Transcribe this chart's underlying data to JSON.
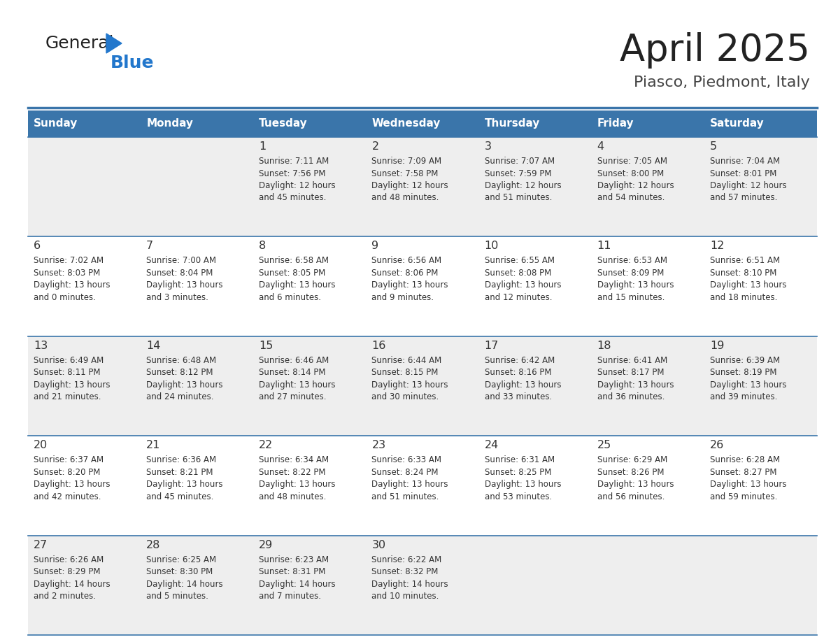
{
  "title": "April 2025",
  "subtitle": "Piasco, Piedmont, Italy",
  "days_of_week": [
    "Sunday",
    "Monday",
    "Tuesday",
    "Wednesday",
    "Thursday",
    "Friday",
    "Saturday"
  ],
  "header_bg": "#3A75AA",
  "header_text": "#FFFFFF",
  "row_bg_odd": "#EEEEEE",
  "row_bg_even": "#FFFFFF",
  "cell_text_color": "#333333",
  "day_num_color": "#333333",
  "grid_line_color": "#3A75AA",
  "title_color": "#222222",
  "subtitle_color": "#444444",
  "logo_general_color": "#222222",
  "logo_blue_color": "#2277CC",
  "weeks": [
    [
      {
        "day": null,
        "sunrise": null,
        "sunset": null,
        "daylight": null
      },
      {
        "day": null,
        "sunrise": null,
        "sunset": null,
        "daylight": null
      },
      {
        "day": 1,
        "sunrise": "7:11 AM",
        "sunset": "7:56 PM",
        "daylight": "12 hours and 45 minutes."
      },
      {
        "day": 2,
        "sunrise": "7:09 AM",
        "sunset": "7:58 PM",
        "daylight": "12 hours and 48 minutes."
      },
      {
        "day": 3,
        "sunrise": "7:07 AM",
        "sunset": "7:59 PM",
        "daylight": "12 hours and 51 minutes."
      },
      {
        "day": 4,
        "sunrise": "7:05 AM",
        "sunset": "8:00 PM",
        "daylight": "12 hours and 54 minutes."
      },
      {
        "day": 5,
        "sunrise": "7:04 AM",
        "sunset": "8:01 PM",
        "daylight": "12 hours and 57 minutes."
      }
    ],
    [
      {
        "day": 6,
        "sunrise": "7:02 AM",
        "sunset": "8:03 PM",
        "daylight": "13 hours and 0 minutes."
      },
      {
        "day": 7,
        "sunrise": "7:00 AM",
        "sunset": "8:04 PM",
        "daylight": "13 hours and 3 minutes."
      },
      {
        "day": 8,
        "sunrise": "6:58 AM",
        "sunset": "8:05 PM",
        "daylight": "13 hours and 6 minutes."
      },
      {
        "day": 9,
        "sunrise": "6:56 AM",
        "sunset": "8:06 PM",
        "daylight": "13 hours and 9 minutes."
      },
      {
        "day": 10,
        "sunrise": "6:55 AM",
        "sunset": "8:08 PM",
        "daylight": "13 hours and 12 minutes."
      },
      {
        "day": 11,
        "sunrise": "6:53 AM",
        "sunset": "8:09 PM",
        "daylight": "13 hours and 15 minutes."
      },
      {
        "day": 12,
        "sunrise": "6:51 AM",
        "sunset": "8:10 PM",
        "daylight": "13 hours and 18 minutes."
      }
    ],
    [
      {
        "day": 13,
        "sunrise": "6:49 AM",
        "sunset": "8:11 PM",
        "daylight": "13 hours and 21 minutes."
      },
      {
        "day": 14,
        "sunrise": "6:48 AM",
        "sunset": "8:12 PM",
        "daylight": "13 hours and 24 minutes."
      },
      {
        "day": 15,
        "sunrise": "6:46 AM",
        "sunset": "8:14 PM",
        "daylight": "13 hours and 27 minutes."
      },
      {
        "day": 16,
        "sunrise": "6:44 AM",
        "sunset": "8:15 PM",
        "daylight": "13 hours and 30 minutes."
      },
      {
        "day": 17,
        "sunrise": "6:42 AM",
        "sunset": "8:16 PM",
        "daylight": "13 hours and 33 minutes."
      },
      {
        "day": 18,
        "sunrise": "6:41 AM",
        "sunset": "8:17 PM",
        "daylight": "13 hours and 36 minutes."
      },
      {
        "day": 19,
        "sunrise": "6:39 AM",
        "sunset": "8:19 PM",
        "daylight": "13 hours and 39 minutes."
      }
    ],
    [
      {
        "day": 20,
        "sunrise": "6:37 AM",
        "sunset": "8:20 PM",
        "daylight": "13 hours and 42 minutes."
      },
      {
        "day": 21,
        "sunrise": "6:36 AM",
        "sunset": "8:21 PM",
        "daylight": "13 hours and 45 minutes."
      },
      {
        "day": 22,
        "sunrise": "6:34 AM",
        "sunset": "8:22 PM",
        "daylight": "13 hours and 48 minutes."
      },
      {
        "day": 23,
        "sunrise": "6:33 AM",
        "sunset": "8:24 PM",
        "daylight": "13 hours and 51 minutes."
      },
      {
        "day": 24,
        "sunrise": "6:31 AM",
        "sunset": "8:25 PM",
        "daylight": "13 hours and 53 minutes."
      },
      {
        "day": 25,
        "sunrise": "6:29 AM",
        "sunset": "8:26 PM",
        "daylight": "13 hours and 56 minutes."
      },
      {
        "day": 26,
        "sunrise": "6:28 AM",
        "sunset": "8:27 PM",
        "daylight": "13 hours and 59 minutes."
      }
    ],
    [
      {
        "day": 27,
        "sunrise": "6:26 AM",
        "sunset": "8:29 PM",
        "daylight": "14 hours and 2 minutes."
      },
      {
        "day": 28,
        "sunrise": "6:25 AM",
        "sunset": "8:30 PM",
        "daylight": "14 hours and 5 minutes."
      },
      {
        "day": 29,
        "sunrise": "6:23 AM",
        "sunset": "8:31 PM",
        "daylight": "14 hours and 7 minutes."
      },
      {
        "day": 30,
        "sunrise": "6:22 AM",
        "sunset": "8:32 PM",
        "daylight": "14 hours and 10 minutes."
      },
      {
        "day": null,
        "sunrise": null,
        "sunset": null,
        "daylight": null
      },
      {
        "day": null,
        "sunrise": null,
        "sunset": null,
        "daylight": null
      },
      {
        "day": null,
        "sunrise": null,
        "sunset": null,
        "daylight": null
      }
    ]
  ]
}
